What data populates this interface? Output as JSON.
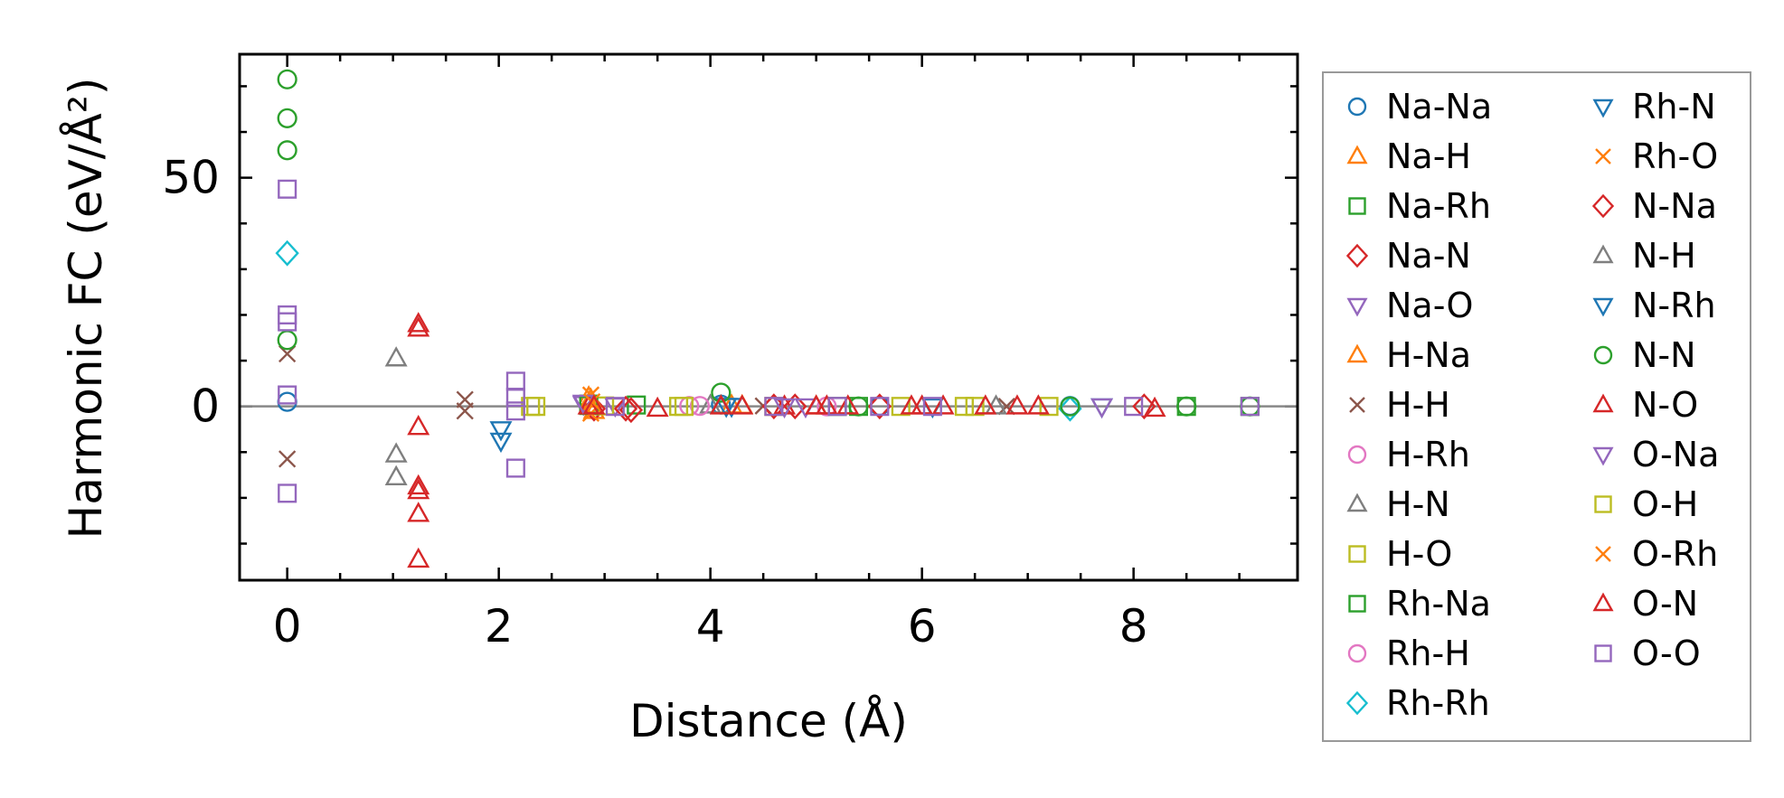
{
  "chart_data": {
    "type": "scatter",
    "xlabel": "Distance (Å)",
    "ylabel": "Harmonic FC (eV/Å²)",
    "xlim": [
      -0.45,
      9.55
    ],
    "ylim": [
      -38,
      77
    ],
    "xticks": [
      0,
      2,
      4,
      6,
      8
    ],
    "xtick_labels": [
      "0",
      "2",
      "4",
      "6",
      "8"
    ],
    "yticks": [
      0,
      50
    ],
    "ytick_labels": [
      "0",
      "50"
    ],
    "zero_line": true,
    "grid": false,
    "legend_position": "outside-right",
    "series": [
      {
        "name": "Na-Na",
        "marker": "circle",
        "color": "#1f77b4",
        "points": [
          [
            0.0,
            1.0
          ],
          [
            4.1,
            0.4
          ],
          [
            5.6,
            0.1
          ],
          [
            7.4,
            0.1
          ]
        ]
      },
      {
        "name": "Na-H",
        "marker": "triangle-up",
        "color": "#ff7f0e",
        "points": [
          [
            2.85,
            2.0
          ],
          [
            2.9,
            -1.0
          ],
          [
            4.2,
            0.2
          ],
          [
            5.0,
            0.0
          ]
        ]
      },
      {
        "name": "Na-Rh",
        "marker": "square",
        "color": "#2ca02c",
        "points": [
          [
            2.85,
            0.5
          ],
          [
            3.3,
            0.3
          ],
          [
            5.4,
            0.0
          ],
          [
            9.1,
            0.0
          ]
        ]
      },
      {
        "name": "Na-N",
        "marker": "diamond",
        "color": "#d62728",
        "points": [
          [
            2.9,
            -0.5
          ],
          [
            3.25,
            -0.8
          ],
          [
            4.8,
            0.0
          ]
        ]
      },
      {
        "name": "Na-O",
        "marker": "triangle-down",
        "color": "#9467bd",
        "points": [
          [
            2.8,
            0.5
          ],
          [
            3.1,
            0.2
          ],
          [
            4.9,
            0.0
          ]
        ]
      },
      {
        "name": "H-Na",
        "marker": "triangle-up",
        "color": "#ff7f0e",
        "points": [
          [
            2.87,
            1.5
          ],
          [
            4.3,
            0.1
          ]
        ]
      },
      {
        "name": "H-H",
        "marker": "x",
        "color": "#8c564b",
        "points": [
          [
            0.0,
            11.5
          ],
          [
            0.0,
            -11.5
          ],
          [
            1.68,
            1.5
          ],
          [
            1.68,
            -1.0
          ],
          [
            4.5,
            0.1
          ],
          [
            6.8,
            0.0
          ]
        ]
      },
      {
        "name": "H-Rh",
        "marker": "circle",
        "color": "#e377c2",
        "points": [
          [
            3.8,
            0.1
          ],
          [
            5.1,
            0.0
          ]
        ]
      },
      {
        "name": "H-N",
        "marker": "triangle-up",
        "color": "#7f7f7f",
        "points": [
          [
            1.03,
            10.5
          ],
          [
            1.03,
            -10.5
          ],
          [
            1.03,
            -15.5
          ],
          [
            4.0,
            0.2
          ]
        ]
      },
      {
        "name": "H-O",
        "marker": "square",
        "color": "#bcbd22",
        "points": [
          [
            2.3,
            0.0
          ],
          [
            3.0,
            0.1
          ],
          [
            3.7,
            0.0
          ],
          [
            4.6,
            0.0
          ],
          [
            5.8,
            0.0
          ],
          [
            6.5,
            0.0
          ],
          [
            7.2,
            0.0
          ]
        ]
      },
      {
        "name": "Rh-Na",
        "marker": "square",
        "color": "#2ca02c",
        "points": [
          [
            2.85,
            0.2
          ],
          [
            5.2,
            0.0
          ],
          [
            8.5,
            0.0
          ]
        ]
      },
      {
        "name": "Rh-H",
        "marker": "circle",
        "color": "#e377c2",
        "points": [
          [
            3.9,
            0.1
          ]
        ]
      },
      {
        "name": "Rh-Rh",
        "marker": "diamond",
        "color": "#17becf",
        "points": [
          [
            0.0,
            33.5
          ],
          [
            7.4,
            -0.5
          ]
        ]
      },
      {
        "name": "Rh-N",
        "marker": "triangle-down",
        "color": "#1f77b4",
        "points": [
          [
            2.02,
            -5.0
          ],
          [
            2.02,
            -7.5
          ],
          [
            4.2,
            0.1
          ],
          [
            6.1,
            0.0
          ]
        ]
      },
      {
        "name": "Rh-O",
        "marker": "x",
        "color": "#ff7f0e",
        "points": [
          [
            2.87,
            2.5
          ],
          [
            2.87,
            -1.5
          ]
        ]
      },
      {
        "name": "N-Na",
        "marker": "diamond",
        "color": "#d62728",
        "points": [
          [
            3.2,
            -0.5
          ],
          [
            4.6,
            0.0
          ],
          [
            5.6,
            0.0
          ],
          [
            8.1,
            0.0
          ]
        ]
      },
      {
        "name": "N-H",
        "marker": "triangle-up",
        "color": "#7f7f7f",
        "points": [
          [
            4.1,
            0.1
          ],
          [
            6.7,
            0.0
          ]
        ]
      },
      {
        "name": "N-Rh",
        "marker": "triangle-down",
        "color": "#1f77b4",
        "points": [
          [
            4.15,
            0.1
          ],
          [
            7.7,
            0.0
          ]
        ]
      },
      {
        "name": "N-N",
        "marker": "circle",
        "color": "#2ca02c",
        "points": [
          [
            0.0,
            71.5
          ],
          [
            0.0,
            63.0
          ],
          [
            0.0,
            56.0
          ],
          [
            0.0,
            14.5
          ],
          [
            4.1,
            3.0
          ],
          [
            5.4,
            0.0
          ],
          [
            7.4,
            0.0
          ],
          [
            8.5,
            0.0
          ],
          [
            9.1,
            0.0
          ]
        ]
      },
      {
        "name": "N-O",
        "marker": "triangle-up",
        "color": "#d62728",
        "points": [
          [
            1.24,
            18.0
          ],
          [
            1.24,
            17.0
          ],
          [
            1.24,
            -4.5
          ],
          [
            1.24,
            -17.5
          ],
          [
            1.24,
            -18.5
          ],
          [
            1.24,
            -23.5
          ],
          [
            1.24,
            -33.5
          ],
          [
            2.85,
            0.0
          ],
          [
            3.5,
            -0.5
          ],
          [
            4.1,
            0.0
          ],
          [
            4.3,
            0.0
          ],
          [
            4.7,
            0.0
          ],
          [
            5.0,
            0.0
          ],
          [
            5.3,
            0.0
          ],
          [
            5.9,
            0.0
          ],
          [
            6.2,
            0.0
          ],
          [
            6.6,
            0.0
          ],
          [
            6.9,
            0.0
          ],
          [
            7.1,
            0.0
          ],
          [
            8.2,
            -0.5
          ]
        ]
      },
      {
        "name": "O-Na",
        "marker": "triangle-down",
        "color": "#9467bd",
        "points": [
          [
            2.8,
            0.8
          ],
          [
            4.7,
            0.0
          ],
          [
            7.7,
            0.0
          ]
        ]
      },
      {
        "name": "O-H",
        "marker": "square",
        "color": "#bcbd22",
        "points": [
          [
            2.35,
            0.0
          ],
          [
            3.75,
            0.0
          ],
          [
            6.4,
            0.0
          ]
        ]
      },
      {
        "name": "O-Rh",
        "marker": "x",
        "color": "#ff7f0e",
        "points": [
          [
            2.88,
            1.0
          ]
        ]
      },
      {
        "name": "O-N",
        "marker": "triangle-up",
        "color": "#d62728",
        "points": [
          [
            2.9,
            0.0
          ],
          [
            5.1,
            0.0
          ],
          [
            6.0,
            0.0
          ]
        ]
      },
      {
        "name": "O-O",
        "marker": "square",
        "color": "#9467bd",
        "points": [
          [
            0.0,
            47.5
          ],
          [
            0.0,
            20.0
          ],
          [
            0.0,
            18.5
          ],
          [
            0.0,
            2.5
          ],
          [
            0.0,
            -19.0
          ],
          [
            2.16,
            5.5
          ],
          [
            2.16,
            2.0
          ],
          [
            2.16,
            -1.0
          ],
          [
            2.16,
            -13.5
          ],
          [
            3.1,
            0.0
          ],
          [
            4.6,
            0.0
          ],
          [
            5.2,
            0.0
          ],
          [
            5.6,
            0.0
          ],
          [
            6.1,
            0.0
          ],
          [
            8.0,
            0.0
          ],
          [
            9.1,
            0.0
          ]
        ]
      }
    ]
  }
}
